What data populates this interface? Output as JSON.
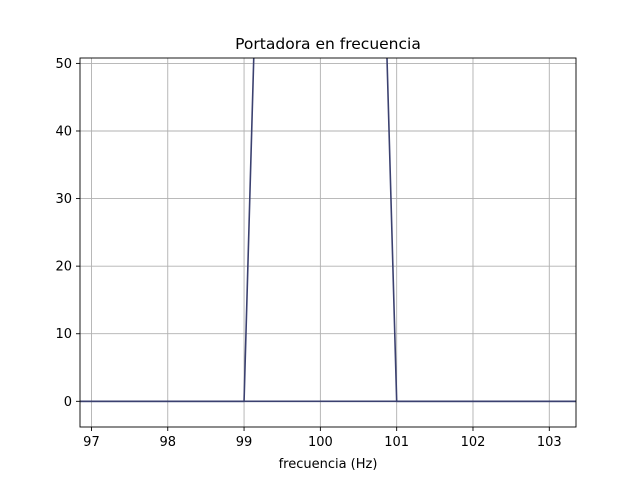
{
  "chart_data": {
    "type": "line",
    "title": "Portadora en frecuencia",
    "xlabel": "frecuencia (Hz)",
    "ylabel": "",
    "xlim": [
      96.85,
      103.35
    ],
    "ylim": [
      -3.8,
      50.8
    ],
    "xticks": [
      97,
      98,
      99,
      100,
      101,
      102,
      103
    ],
    "yticks": [
      0,
      10,
      20,
      30,
      40,
      50
    ],
    "grid": true,
    "legend": "none",
    "series": [
      {
        "color": "#3b4170",
        "x": [
          96.85,
          99.0,
          99.2,
          100.8,
          101.0,
          103.35
        ],
        "y": [
          0,
          0,
          80,
          80,
          0,
          0
        ]
      },
      {
        "color": "#3b4170",
        "x": [
          96.85,
          103.35
        ],
        "y": [
          0,
          0
        ]
      }
    ]
  }
}
